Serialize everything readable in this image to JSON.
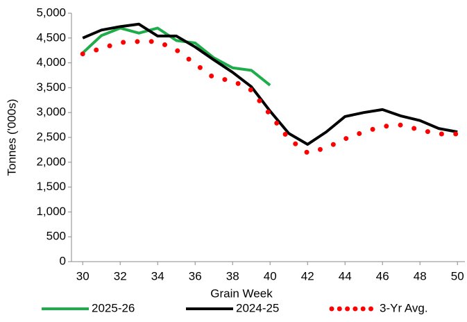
{
  "chart_data": {
    "type": "line",
    "x_label": "Grain Week",
    "y_label": "Tonnes ('000s)",
    "x": [
      30,
      31,
      32,
      33,
      34,
      35,
      36,
      37,
      38,
      39,
      40,
      41,
      42,
      43,
      44,
      45,
      46,
      47,
      48,
      49,
      50
    ],
    "xlim": [
      29.4,
      50.4
    ],
    "xticks": [
      30,
      32,
      34,
      36,
      38,
      40,
      42,
      44,
      46,
      48,
      50
    ],
    "ylim": [
      0,
      5000
    ],
    "yticks": [
      0,
      500,
      {
        "value": 1000,
        "label": "1,000"
      },
      {
        "value": 1500,
        "label": "1,500"
      },
      {
        "value": 2000,
        "label": "2,000"
      },
      {
        "value": 2500,
        "label": "2,500"
      },
      {
        "value": 3000,
        "label": "3,000"
      },
      {
        "value": 3500,
        "label": "3,500"
      },
      {
        "value": 4000,
        "label": "4,000"
      },
      {
        "value": 4500,
        "label": "4,500"
      },
      {
        "value": 5000,
        "label": "5,000"
      }
    ],
    "grid": false,
    "legend": "bottom",
    "series": [
      {
        "name": "2025-26",
        "color": "#1fad4b",
        "style": "solid",
        "values": [
          4200,
          4550,
          4700,
          4600,
          4700,
          4450,
          4400,
          4100,
          3900,
          3850,
          3550,
          null,
          null,
          null,
          null,
          null,
          null,
          null,
          null,
          null,
          null
        ]
      },
      {
        "name": "2024-25",
        "color": "#000000",
        "style": "solid",
        "values": [
          4500,
          4660,
          4730,
          4780,
          4540,
          4540,
          4320,
          4060,
          3810,
          3520,
          3030,
          2580,
          2360,
          2610,
          2920,
          3000,
          3060,
          2930,
          2840,
          2680,
          2610
        ]
      },
      {
        "name": "3-Yr Avg.",
        "color": "#ff0000",
        "style": "dotted",
        "values": [
          4180,
          4290,
          4410,
          4430,
          4430,
          4260,
          3980,
          3700,
          3640,
          3450,
          2960,
          2470,
          2190,
          2290,
          2470,
          2610,
          2720,
          2750,
          2650,
          2570,
          2570
        ]
      }
    ]
  }
}
